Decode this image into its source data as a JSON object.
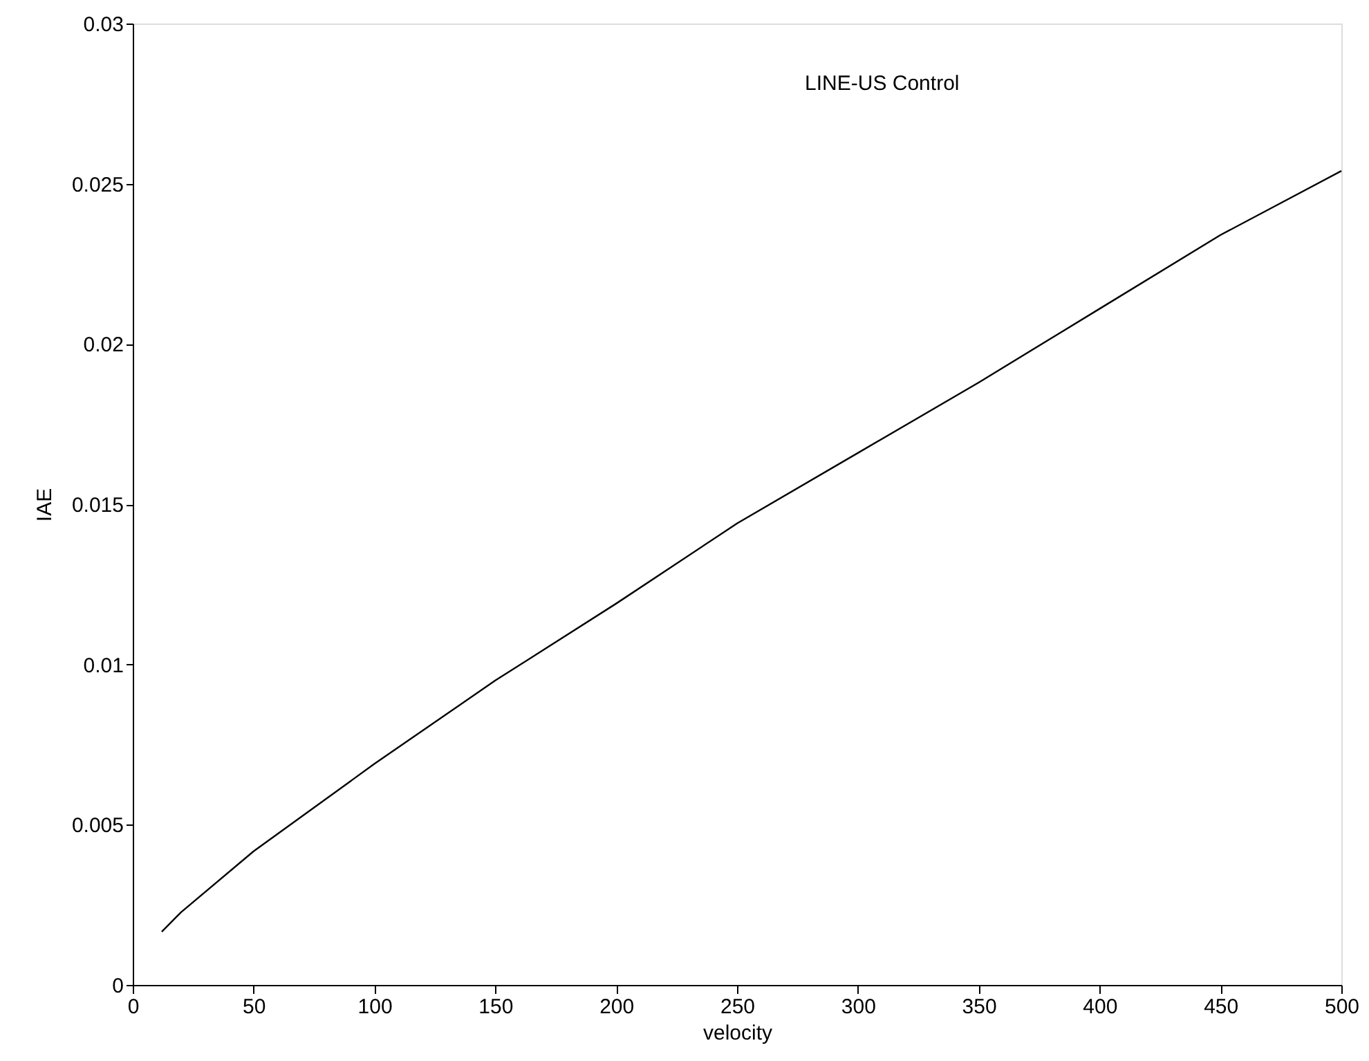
{
  "chart_data": {
    "type": "line",
    "xlabel": "velocity",
    "ylabel": "IAE",
    "annotations": [
      "LINE-US Control"
    ],
    "x": [
      12,
      20,
      50,
      100,
      150,
      200,
      250,
      300,
      350,
      400,
      450,
      500
    ],
    "series": [
      {
        "color": "#000000",
        "values": [
          0.00166,
          0.00227,
          0.00417,
          0.0069,
          0.0095,
          0.0119,
          0.0144,
          0.0166,
          0.0188,
          0.0211,
          0.0234,
          0.0254
        ]
      }
    ],
    "xlim": [
      0,
      500
    ],
    "xticks": [
      0,
      50,
      100,
      150,
      200,
      250,
      300,
      350,
      400,
      450,
      500
    ],
    "ylim": [
      0,
      0.03
    ],
    "yticks": [
      0,
      0.005,
      0.01,
      0.015,
      0.02,
      0.025,
      0.03
    ],
    "grid": false,
    "marker": "none",
    "line_style": "solid"
  }
}
